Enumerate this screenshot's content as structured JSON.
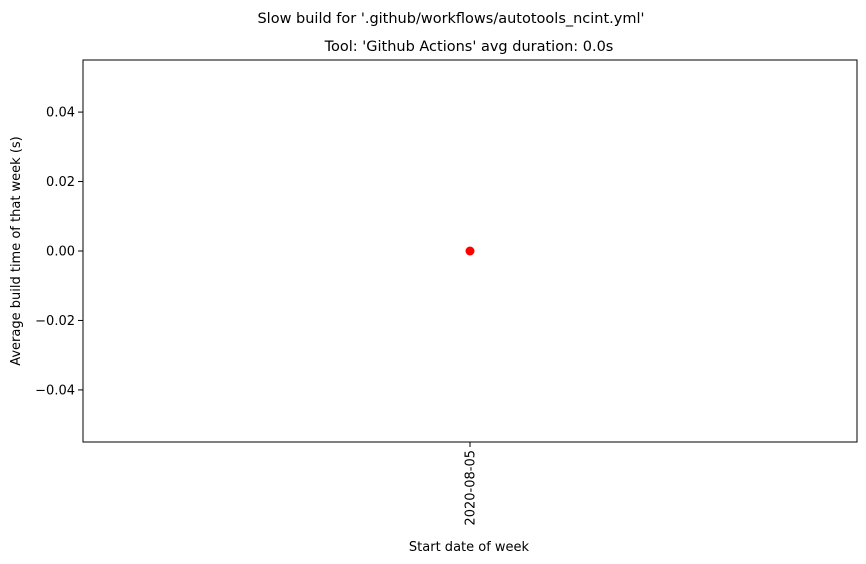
{
  "chart_data": {
    "type": "scatter",
    "suptitle": "Slow build for '.github/workflows/autotools_ncint.yml'",
    "title": "Tool: 'Github Actions' avg duration: 0.0s",
    "xlabel": "Start date of week",
    "ylabel": "Average build time of that week (s)",
    "categories": [
      "2020-08-05"
    ],
    "values": [
      0.0
    ],
    "ylim": [
      -0.055,
      0.055
    ],
    "yticks": [
      -0.04,
      -0.02,
      0.0,
      0.02,
      0.04
    ],
    "ytick_labels": [
      "−0.04",
      "−0.02",
      "0.00",
      "0.02",
      "0.04"
    ],
    "point_color": "#ff0000",
    "grid": false,
    "legend": false
  }
}
